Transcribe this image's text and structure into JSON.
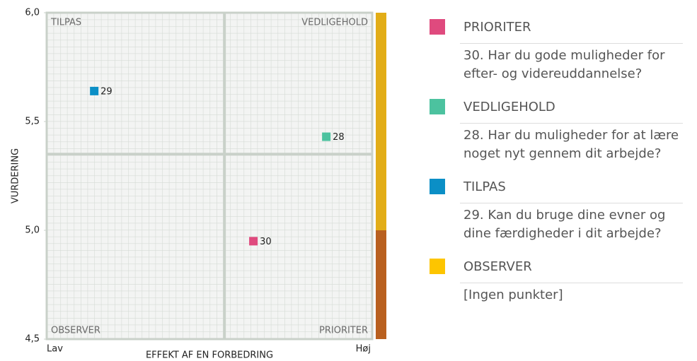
{
  "chart_data": {
    "type": "scatter",
    "ylabel": "VURDERING",
    "xlabel": "EFFEKT AF EN FORBEDRING",
    "x_low": "Lav",
    "x_high": "Høj",
    "x": [
      0.146,
      0.859,
      0.635
    ],
    "values": [
      5.64,
      5.43,
      4.95
    ],
    "point_labels": [
      "29",
      "28",
      "30"
    ],
    "colors": [
      "#0b8fc6",
      "#4cc29f",
      "#df4a7e"
    ],
    "xlim": [
      0,
      1
    ],
    "ylim": [
      4.5,
      6.0
    ],
    "yticks": [
      {
        "value": 4.5,
        "label": "4,5"
      },
      {
        "value": 5.0,
        "label": "5,0"
      },
      {
        "value": 5.5,
        "label": "5,5"
      },
      {
        "value": 6.0,
        "label": "6,0"
      }
    ],
    "dividers": {
      "x": 0.546,
      "y": 5.35
    },
    "quadrants": {
      "top_left": "TILPAS",
      "top_right": "VEDLIGEHOLD",
      "bottom_left": "OBSERVER",
      "bottom_right": "PRIORITER"
    },
    "side_bands": [
      {
        "from": 5.0,
        "to": 6.0,
        "color": "#e2ad17"
      },
      {
        "from": 4.5,
        "to": 5.0,
        "color": "#b9601f"
      }
    ]
  },
  "legend": [
    {
      "name": "PRIORITER",
      "color": "#df4a7e",
      "text": "30. Har du gode muligheder for efter- og videreuddannelse?"
    },
    {
      "name": "VEDLIGEHOLD",
      "color": "#4cc29f",
      "text": "28. Har du muligheder for at lære noget nyt gennem dit arbejde?"
    },
    {
      "name": "TILPAS",
      "color": "#0b8fc6",
      "text": "29. Kan du bruge dine evner og dine færdigheder i dit arbejde?"
    },
    {
      "name": "OBSERVER",
      "color": "#fdc500",
      "text": "[Ingen punkter]"
    }
  ]
}
